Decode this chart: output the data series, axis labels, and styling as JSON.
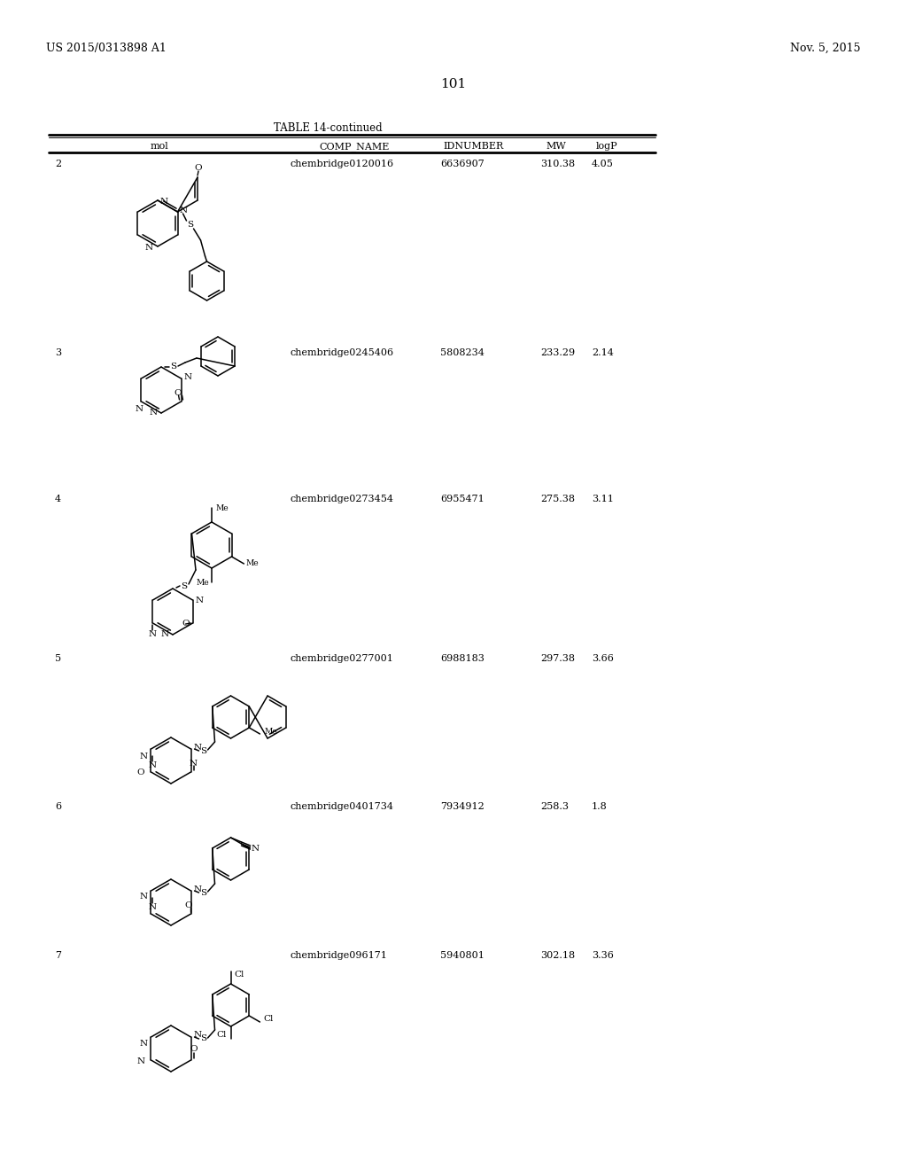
{
  "page_header_left": "US 2015/0313898 A1",
  "page_header_right": "Nov. 5, 2015",
  "page_number": "101",
  "table_title": "TABLE 14-continued",
  "col_headers": [
    "mol",
    "COMP_NAME",
    "IDNUMBER",
    "MW",
    "logP"
  ],
  "rows": [
    {
      "row_num": "2",
      "comp_name": "chembridge0120016",
      "idnumber": "6636907",
      "mw": "310.38",
      "logp": "4.05"
    },
    {
      "row_num": "3",
      "comp_name": "chembridge0245406",
      "idnumber": "5808234",
      "mw": "233.29",
      "logp": "2.14"
    },
    {
      "row_num": "4",
      "comp_name": "chembridge0273454",
      "idnumber": "6955471",
      "mw": "275.38",
      "logp": "3.11"
    },
    {
      "row_num": "5",
      "comp_name": "chembridge0277001",
      "idnumber": "6988183",
      "mw": "297.38",
      "logp": "3.66"
    },
    {
      "row_num": "6",
      "comp_name": "chembridge0401734",
      "idnumber": "7934912",
      "mw": "258.3",
      "logp": "1.8"
    },
    {
      "row_num": "7",
      "comp_name": "chembridge096171",
      "idnumber": "5940801",
      "mw": "302.18",
      "logp": "3.36"
    }
  ],
  "bg_color": "#ffffff",
  "text_color": "#000000"
}
